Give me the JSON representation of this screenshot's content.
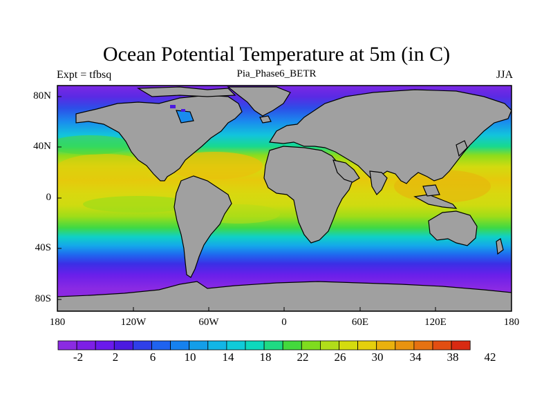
{
  "title": "Ocean Potential Temperature at 5m (in C)",
  "subtitle_left": "Expt = tfbsq",
  "subtitle_center": "Pia_Phase6_BETR",
  "subtitle_right": "JJA",
  "y_ticks": [
    "80N",
    "40N",
    "0",
    "40S",
    "80S"
  ],
  "x_ticks": [
    "180",
    "120W",
    "60W",
    "0",
    "60E",
    "120E",
    "180"
  ],
  "colorbar": {
    "labels": [
      "-2",
      "2",
      "6",
      "10",
      "14",
      "18",
      "22",
      "26",
      "30",
      "34",
      "38",
      "42"
    ],
    "colors": [
      "#8b2be2",
      "#7d1fe6",
      "#6a1aec",
      "#4b1ae0",
      "#2f3fe8",
      "#1f63ef",
      "#1681ee",
      "#139ee9",
      "#12b6e6",
      "#10cbd9",
      "#0ed8bd",
      "#1fda83",
      "#43d93c",
      "#7fdc1e",
      "#b1dd1a",
      "#d4dc0e",
      "#e5cf0c",
      "#eab10d",
      "#e9930f",
      "#e67212",
      "#e24e12",
      "#d82a12"
    ]
  },
  "colors": {
    "land": "#a0a0a0",
    "frame": "#000000",
    "equatorial": "#dcd30f"
  }
}
